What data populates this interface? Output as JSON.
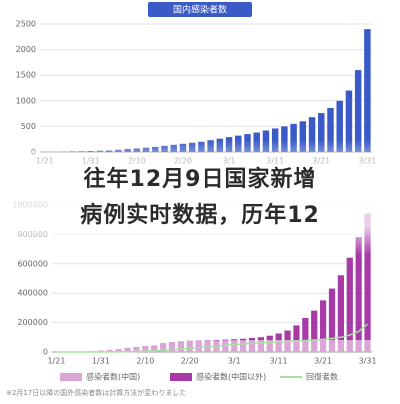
{
  "headline": [
    "往年12月9日国家新增",
    "病例实时数据，历年12"
  ],
  "chart_data": [
    {
      "type": "bar",
      "title": "国内感染者数",
      "color": "#3a5bc7",
      "categories": [
        "1/21",
        null,
        null,
        null,
        null,
        "1/31",
        null,
        null,
        null,
        null,
        "2/10",
        null,
        null,
        null,
        null,
        "2/20",
        null,
        null,
        null,
        null,
        "3/1",
        null,
        null,
        null,
        null,
        "3/11",
        null,
        null,
        null,
        null,
        "3/21",
        null,
        null,
        null,
        null,
        "3/31"
      ],
      "values": [
        2,
        4,
        8,
        12,
        15,
        20,
        25,
        30,
        45,
        60,
        70,
        85,
        100,
        120,
        140,
        160,
        180,
        200,
        230,
        260,
        290,
        320,
        350,
        380,
        420,
        460,
        500,
        550,
        600,
        680,
        760,
        860,
        1000,
        1200,
        1600,
        2400
      ],
      "ylim": [
        0,
        2500
      ],
      "yticks": [
        0,
        500,
        1000,
        1500,
        2000,
        2500
      ],
      "grid": true
    },
    {
      "type": "bar",
      "stacked": true,
      "categories": [
        "1/21",
        null,
        null,
        null,
        null,
        "1/31",
        null,
        null,
        null,
        null,
        "2/10",
        null,
        null,
        null,
        null,
        "2/20",
        null,
        null,
        null,
        null,
        "3/1",
        null,
        null,
        null,
        null,
        "3/11",
        null,
        null,
        null,
        null,
        "3/21",
        null,
        null,
        null,
        null,
        "3/31"
      ],
      "series": [
        {
          "name": "感染者数(中国)",
          "color": "#d9a6d6",
          "values": [
            300,
            600,
            1300,
            2700,
            6000,
            9700,
            14000,
            20000,
            28000,
            34000,
            40000,
            44000,
            60000,
            67000,
            72000,
            75000,
            76000,
            77000,
            78000,
            79000,
            80000,
            80000,
            80500,
            80700,
            80800,
            80900,
            81000,
            81000,
            81100,
            81200,
            81300,
            81400,
            81500,
            81600,
            81700,
            81800
          ]
        },
        {
          "name": "感染者数(中国以外)",
          "color": "#a83aa8",
          "values": [
            0,
            0,
            10,
            20,
            50,
            100,
            150,
            200,
            300,
            400,
            500,
            600,
            700,
            900,
            1100,
            1500,
            2000,
            2500,
            3500,
            5000,
            7000,
            10000,
            15000,
            20000,
            30000,
            45000,
            65000,
            100000,
            150000,
            200000,
            270000,
            350000,
            440000,
            560000,
            700000,
            860000
          ]
        },
        {
          "name": "回復者数",
          "color": "#a8e0a0",
          "type": "line",
          "values": [
            0,
            0,
            30,
            50,
            100,
            250,
            500,
            1000,
            2000,
            3500,
            5500,
            8000,
            12000,
            16000,
            20000,
            25000,
            30000,
            35000,
            40000,
            45000,
            50000,
            55000,
            60000,
            63000,
            66000,
            69000,
            72000,
            75000,
            78000,
            82000,
            86000,
            92000,
            100000,
            115000,
            140000,
            190000
          ]
        }
      ],
      "ylim": [
        0,
        1000000
      ],
      "yticks": [
        0,
        200000,
        400000,
        600000,
        800000,
        1000000
      ],
      "grid": true,
      "note": "※2月17日以降の国外感染者数は計算方法が変わりました"
    }
  ]
}
